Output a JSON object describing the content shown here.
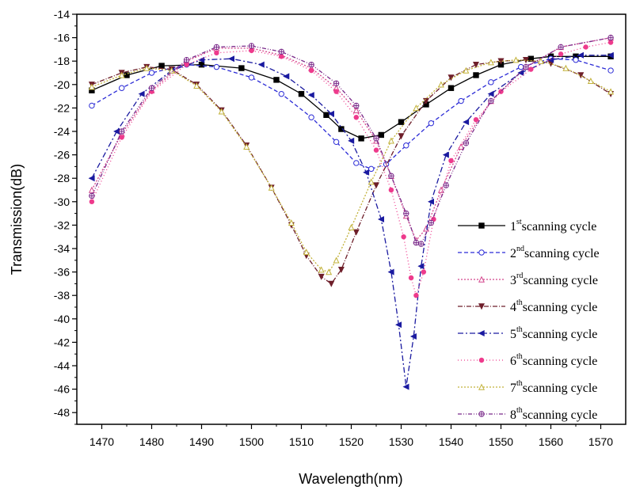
{
  "chart_data": {
    "type": "line",
    "xlabel": "Wavelength(nm)",
    "ylabel": "Transmission(dB)",
    "xlim": [
      1465,
      1575
    ],
    "ylim": [
      -49,
      -14
    ],
    "x_ticks": [
      1470,
      1480,
      1490,
      1500,
      1510,
      1520,
      1530,
      1540,
      1550,
      1560,
      1570
    ],
    "y_ticks": [
      -14,
      -16,
      -18,
      -20,
      -22,
      -24,
      -26,
      -28,
      -30,
      -32,
      -34,
      -36,
      -38,
      -40,
      -42,
      -44,
      -46,
      -48
    ],
    "legend_position": "bottom-right",
    "series": [
      {
        "name": "1st scanning cycle",
        "ord": "1",
        "sup": "st",
        "rest": "scanning cycle",
        "color": "#000000",
        "dash": "",
        "marker": "square",
        "x": [
          1468,
          1475,
          1482,
          1490,
          1498,
          1505,
          1510,
          1515,
          1518,
          1522,
          1526,
          1530,
          1535,
          1540,
          1545,
          1550,
          1556,
          1560,
          1565,
          1572
        ],
        "y": [
          -20.5,
          -19.2,
          -18.4,
          -18.3,
          -18.6,
          -19.6,
          -20.8,
          -22.6,
          -23.8,
          -24.6,
          -24.3,
          -23.2,
          -21.7,
          -20.3,
          -19.2,
          -18.3,
          -17.8,
          -17.6,
          -17.6,
          -17.6
        ]
      },
      {
        "name": "2nd scanning cycle",
        "ord": "2",
        "sup": "nd",
        "rest": "scanning cycle",
        "color": "#2b2bd6",
        "dash": "5,3",
        "marker": "circle",
        "x": [
          1468,
          1474,
          1480,
          1487,
          1493,
          1500,
          1506,
          1512,
          1517,
          1521,
          1524,
          1527,
          1531,
          1536,
          1542,
          1548,
          1554,
          1560,
          1565,
          1572
        ],
        "y": [
          -21.8,
          -20.3,
          -19.0,
          -18.3,
          -18.5,
          -19.4,
          -20.8,
          -22.8,
          -24.9,
          -26.7,
          -27.2,
          -26.8,
          -25.2,
          -23.3,
          -21.4,
          -19.8,
          -18.5,
          -17.8,
          -17.9,
          -18.8
        ]
      },
      {
        "name": "3rd scanning cycle",
        "ord": "3",
        "sup": "rd",
        "rest": "scanning cycle",
        "color": "#d4448c",
        "dash": "2,2",
        "marker": "triangle",
        "x": [
          1468,
          1474,
          1480,
          1487,
          1493,
          1500,
          1506,
          1512,
          1517,
          1521,
          1525,
          1528,
          1531,
          1533,
          1535,
          1538,
          1542,
          1548,
          1555,
          1562,
          1572
        ],
        "y": [
          -29.0,
          -24.2,
          -20.5,
          -18.0,
          -16.9,
          -16.9,
          -17.5,
          -18.6,
          -20.3,
          -22.2,
          -24.8,
          -27.8,
          -31.2,
          -33.3,
          -32.3,
          -29.0,
          -25.3,
          -21.4,
          -18.5,
          -16.8,
          -16.0
        ]
      },
      {
        "name": "4th scanning cycle",
        "ord": "4",
        "sup": "th",
        "rest": "scanning cycle",
        "color": "#6e1f2a",
        "dash": "6,2,1,2",
        "marker": "triangle-down",
        "x": [
          1468,
          1474,
          1479,
          1484,
          1489,
          1494,
          1499,
          1504,
          1508,
          1511,
          1514,
          1516,
          1518,
          1521,
          1525,
          1530,
          1535,
          1540,
          1545,
          1550,
          1555,
          1560,
          1566,
          1572
        ],
        "y": [
          -20.0,
          -19.0,
          -18.5,
          -18.7,
          -20.0,
          -22.2,
          -25.2,
          -28.8,
          -32.0,
          -34.6,
          -36.4,
          -37.0,
          -35.8,
          -32.6,
          -28.6,
          -24.4,
          -21.4,
          -19.4,
          -18.3,
          -18.0,
          -17.9,
          -18.2,
          -19.2,
          -20.8
        ]
      },
      {
        "name": "5th scanning cycle",
        "ord": "5",
        "sup": "th",
        "rest": "scanning cycle",
        "color": "#1a1aa0",
        "dash": "7,3,2,3",
        "marker": "triangle-left",
        "x": [
          1468,
          1473,
          1478,
          1484,
          1490,
          1496,
          1502,
          1507,
          1512,
          1516,
          1520,
          1523,
          1526,
          1528,
          1529.5,
          1531,
          1532.5,
          1534,
          1536,
          1539,
          1543,
          1548,
          1554,
          1560,
          1566,
          1572
        ],
        "y": [
          -28.0,
          -24.0,
          -20.8,
          -18.8,
          -17.9,
          -17.8,
          -18.3,
          -19.3,
          -20.9,
          -22.5,
          -24.8,
          -27.5,
          -31.5,
          -36.0,
          -40.5,
          -45.8,
          -41.5,
          -35.5,
          -30.0,
          -26.0,
          -23.2,
          -20.8,
          -19.0,
          -17.9,
          -17.5,
          -17.5
        ]
      },
      {
        "name": "6th scanning cycle",
        "ord": "6",
        "sup": "th",
        "rest": "scanning cycle",
        "color": "#ee3a8c",
        "dash": "1,3",
        "marker": "star",
        "x": [
          1468,
          1474,
          1480,
          1487,
          1493,
          1500,
          1506,
          1512,
          1517,
          1521,
          1525,
          1528,
          1530.5,
          1532,
          1533,
          1534.5,
          1536.5,
          1540,
          1545,
          1550,
          1556,
          1562,
          1567,
          1572
        ],
        "y": [
          -30.0,
          -24.5,
          -20.6,
          -18.3,
          -17.3,
          -17.1,
          -17.6,
          -18.8,
          -20.6,
          -22.8,
          -25.6,
          -29.0,
          -33.0,
          -36.5,
          -38.0,
          -36.0,
          -31.5,
          -26.5,
          -23.0,
          -20.6,
          -18.7,
          -17.4,
          -16.8,
          -16.4
        ]
      },
      {
        "name": "7th scanning cycle",
        "ord": "7",
        "sup": "th",
        "rest": "scanning cycle",
        "color": "#c2b23a",
        "dash": "2,2",
        "marker": "triangle",
        "x": [
          1468,
          1474,
          1479,
          1484,
          1489,
          1494,
          1499,
          1504,
          1508,
          1511,
          1514,
          1515.5,
          1517,
          1520,
          1524,
          1528,
          1533,
          1538,
          1543,
          1548,
          1553,
          1558,
          1563,
          1568,
          1572
        ],
        "y": [
          -20.2,
          -19.2,
          -18.6,
          -18.8,
          -20.1,
          -22.3,
          -25.3,
          -28.8,
          -31.8,
          -34.3,
          -35.8,
          -36.0,
          -35.0,
          -32.2,
          -28.3,
          -24.8,
          -22.0,
          -20.0,
          -18.8,
          -18.1,
          -17.9,
          -18.0,
          -18.6,
          -19.7,
          -20.6
        ]
      },
      {
        "name": "8th scanning cycle",
        "ord": "8",
        "sup": "th",
        "rest": "scanning cycle",
        "color": "#7a2a8a",
        "dash": "5,2,1,2,1,2",
        "marker": "circle-cross",
        "x": [
          1468,
          1474,
          1480,
          1487,
          1493,
          1500,
          1506,
          1512,
          1517,
          1521,
          1525,
          1528,
          1531,
          1533,
          1534,
          1536,
          1539,
          1543,
          1548,
          1555,
          1562,
          1572
        ],
        "y": [
          -29.5,
          -24.0,
          -20.3,
          -17.9,
          -16.8,
          -16.7,
          -17.2,
          -18.3,
          -19.9,
          -21.8,
          -24.6,
          -27.8,
          -31.0,
          -33.5,
          -33.6,
          -31.8,
          -28.6,
          -25.0,
          -21.4,
          -18.5,
          -16.8,
          -16.0
        ]
      }
    ]
  }
}
